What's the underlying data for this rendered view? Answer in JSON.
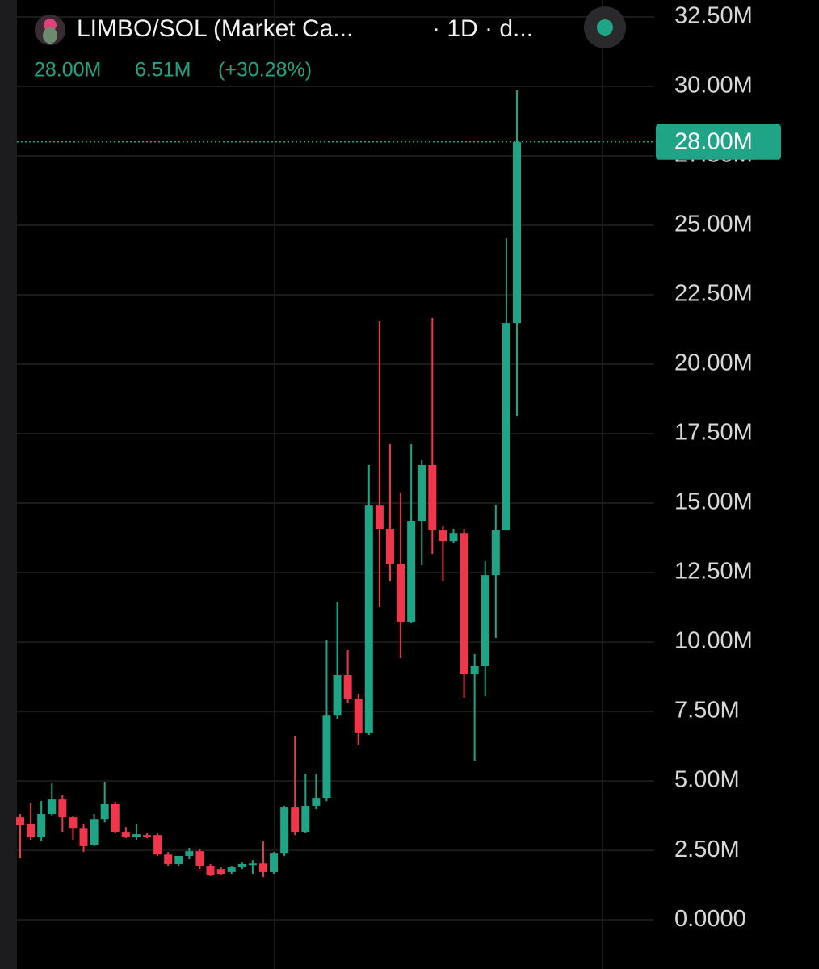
{
  "chart_data": {
    "type": "candlestick",
    "title": "LIMBO/SOL (Market Ca...",
    "interval": "· 1D · d...",
    "header_values": [
      "28.00M",
      "6.51M",
      "(+30.28%)"
    ],
    "last_price": {
      "value": 28,
      "label": "28.00M"
    },
    "colors": {
      "up": "#1fa586",
      "down": "#f0364a"
    },
    "grid": true,
    "ylim": [
      -1.77,
      33.11
    ],
    "yticks": [
      {
        "value": 0,
        "label": "0.0000"
      },
      {
        "value": 2.5,
        "label": "2.50M"
      },
      {
        "value": 5,
        "label": "5.00M"
      },
      {
        "value": 7.5,
        "label": "7.50M"
      },
      {
        "value": 10,
        "label": "10.00M"
      },
      {
        "value": 12.5,
        "label": "12.50M"
      },
      {
        "value": 15,
        "label": "15.00M"
      },
      {
        "value": 17.5,
        "label": "17.50M"
      },
      {
        "value": 20,
        "label": "20.00M"
      },
      {
        "value": 22.5,
        "label": "22.50M"
      },
      {
        "value": 25,
        "label": "25.00M"
      },
      {
        "value": 27.5,
        "label": "27.50M"
      },
      {
        "value": 30,
        "label": "30.00M"
      },
      {
        "value": 32.5,
        "label": "32.50M"
      }
    ],
    "open": [
      3.69,
      3.46,
      2.99,
      3.81,
      4.33,
      3.69,
      3.28,
      2.7,
      3.63,
      4.16,
      3.17,
      2.99,
      3.05,
      3.05,
      2.35,
      2.01,
      2.3,
      2.47,
      1.92,
      1.83,
      1.72,
      1.89,
      1.98,
      2.03,
      1.72,
      2.41,
      4.04,
      3.17,
      4.1,
      4.39,
      7.35,
      8.81,
      7.94,
      6.72,
      14.91,
      14.07,
      12.82,
      10.73,
      14.36,
      16.37,
      14.04,
      13.63,
      13.92,
      8.84,
      9.13,
      12.41,
      14.04,
      21.48
    ],
    "high": [
      3.81,
      4.19,
      4.27,
      4.91,
      4.48,
      3.75,
      3.46,
      3.81,
      4.97,
      4.25,
      3.34,
      3.46,
      3.11,
      3.11,
      2.44,
      2.06,
      2.59,
      2.53,
      2.01,
      1.89,
      1.92,
      2.06,
      2.15,
      2.82,
      2.44,
      4.1,
      6.6,
      5.26,
      5.23,
      10.09,
      11.45,
      9.71,
      8.11,
      16.37,
      21.54,
      17.12,
      15.38,
      17.12,
      16.54,
      21.66,
      14.19,
      14.07,
      14.07,
      9.57,
      12.91,
      14.94,
      24.53,
      29.85
    ],
    "low": [
      2.21,
      2.88,
      2.82,
      3.75,
      3.17,
      2.88,
      2.44,
      2.65,
      3.51,
      3.11,
      2.94,
      2.88,
      2.94,
      2.3,
      1.95,
      1.95,
      2.18,
      1.83,
      1.57,
      1.6,
      1.66,
      1.83,
      1.66,
      1.54,
      1.66,
      2.3,
      3.05,
      3.11,
      3.98,
      4.27,
      7.24,
      7.82,
      6.31,
      6.66,
      11.25,
      12.18,
      9.42,
      10.67,
      12.76,
      13.17,
      12.18,
      13.57,
      7.97,
      5.73,
      8.05,
      10.15,
      14.04,
      18.14
    ],
    "close": [
      3.4,
      2.99,
      3.81,
      4.33,
      3.69,
      3.28,
      2.65,
      3.63,
      4.16,
      3.17,
      2.99,
      3.08,
      2.99,
      2.35,
      2.01,
      2.3,
      2.47,
      1.92,
      1.63,
      1.66,
      1.89,
      2.01,
      2.03,
      1.72,
      2.41,
      4.04,
      3.17,
      4.1,
      4.39,
      7.35,
      8.81,
      7.94,
      6.72,
      14.91,
      14.07,
      12.82,
      10.73,
      14.36,
      16.37,
      14.04,
      13.63,
      13.92,
      8.84,
      9.13,
      12.41,
      14.04,
      21.48,
      28.0
    ]
  }
}
